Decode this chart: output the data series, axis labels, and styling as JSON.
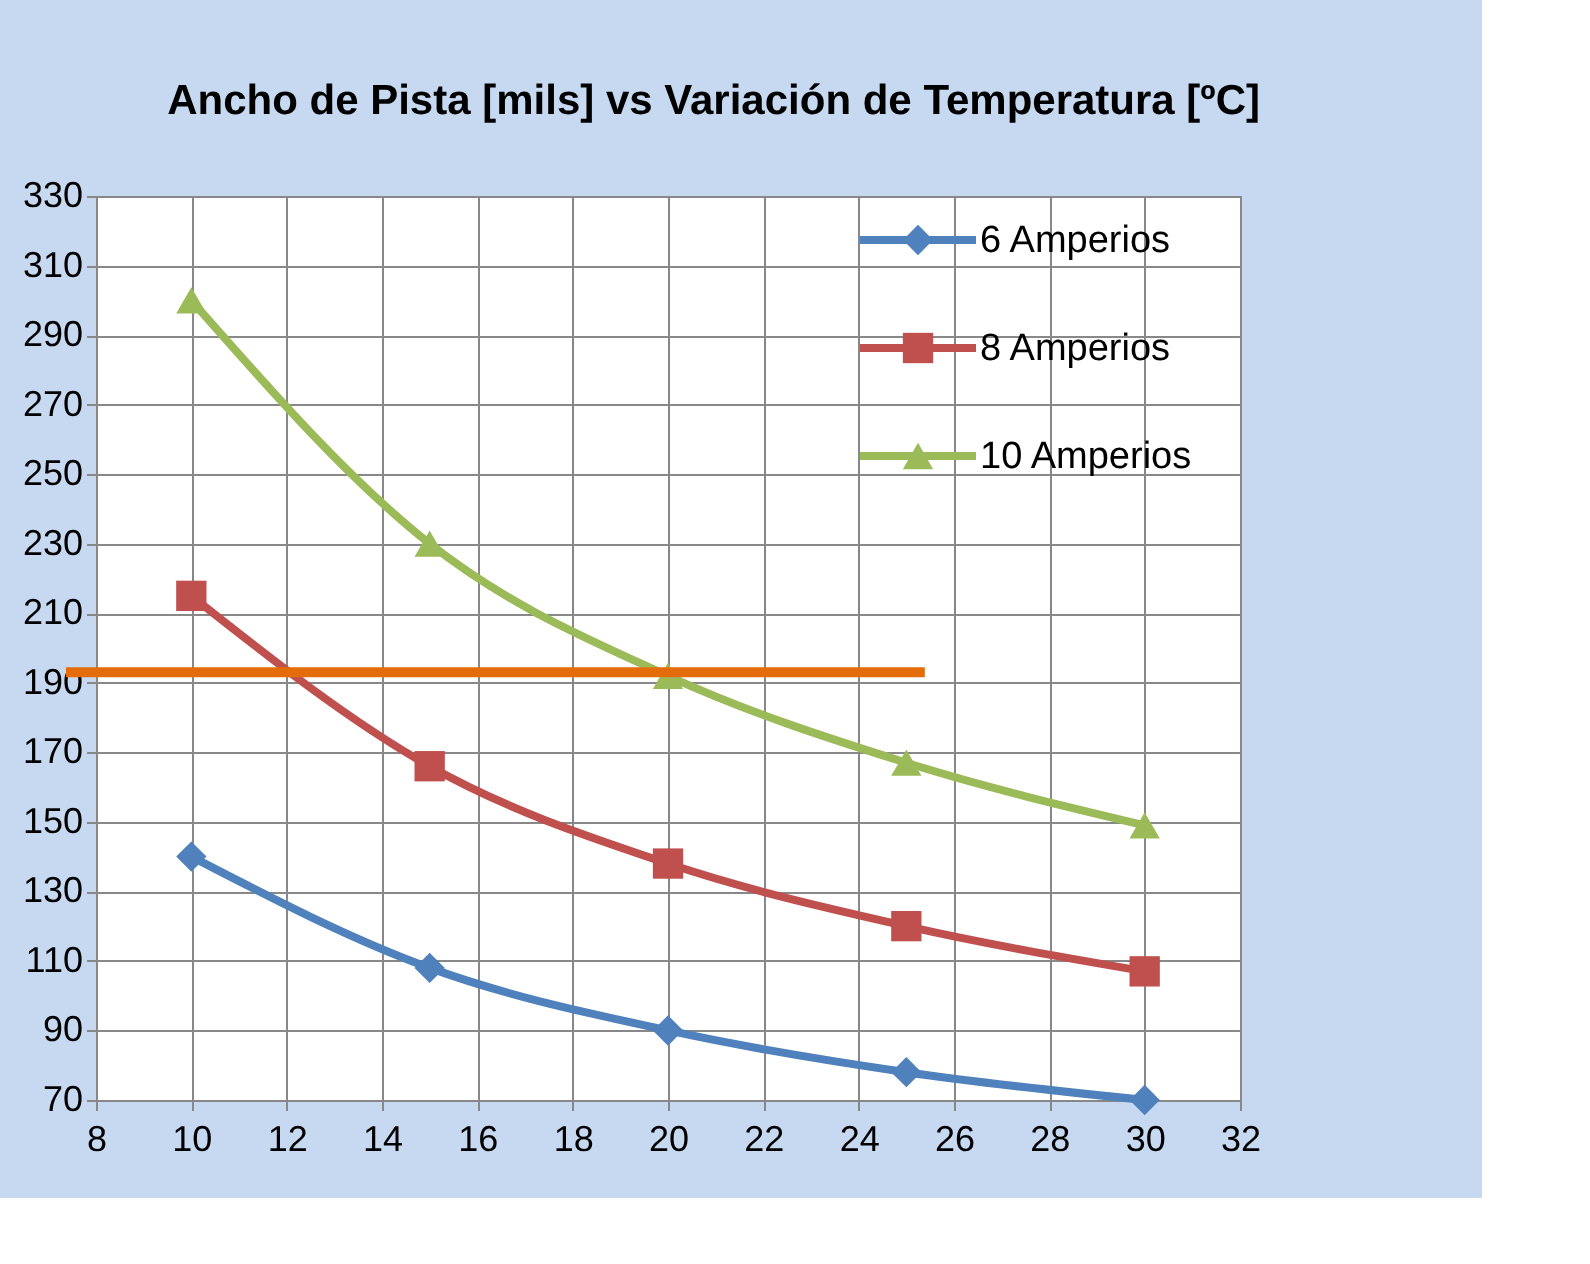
{
  "chart_data": {
    "type": "line",
    "title": "Ancho de Pista [mils]  vs Variación de Temperatura [ºC]",
    "x": [
      10,
      15,
      20,
      25,
      30
    ],
    "series": [
      {
        "name": "6 Amperios",
        "color": "#4f81bd",
        "marker": "diamond",
        "values": [
          140,
          108,
          90,
          78,
          70
        ]
      },
      {
        "name": "8 Amperios",
        "color": "#c0504d",
        "marker": "square",
        "values": [
          215,
          166,
          138,
          120,
          107
        ]
      },
      {
        "name": "10 Amperios",
        "color": "#9bbb59",
        "marker": "triangle",
        "values": [
          300,
          230,
          192,
          167,
          149
        ]
      }
    ],
    "xlim": [
      8,
      32
    ],
    "xticks": [
      8,
      10,
      12,
      14,
      16,
      18,
      20,
      22,
      24,
      26,
      28,
      30,
      32
    ],
    "ylim": [
      70,
      330
    ],
    "yticks": [
      70,
      90,
      110,
      130,
      150,
      170,
      190,
      210,
      230,
      250,
      270,
      290,
      310,
      330
    ],
    "ref_lines": [
      {
        "axis": "y",
        "value": 193,
        "color": "#e46c0a"
      }
    ],
    "grid": true,
    "legend": "top right"
  }
}
